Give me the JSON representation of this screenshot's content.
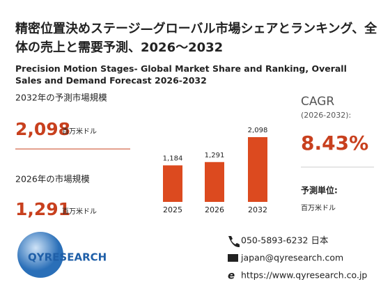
{
  "header": {
    "title": "精密位置決めステージ—グローバル市場シェアとランキング、全体の売上と需要予測、2026～2032",
    "subtitle": "Precision Motion Stages- Global Market Share and Ranking, Overall Sales and Demand Forecast 2026-2032"
  },
  "left": {
    "forecast_label": "2032年の予測市場規模",
    "forecast_value": "2,098",
    "forecast_unit": "百万米ドル",
    "current_label": "2026年の市場規模",
    "current_value": "1,291",
    "current_unit": "百万米ドル"
  },
  "chart_data": {
    "type": "bar",
    "categories": [
      "2025",
      "2026",
      "2032"
    ],
    "values": [
      1184,
      1291,
      2098
    ],
    "value_labels": [
      "1,184",
      "1,291",
      "2,098"
    ],
    "color": "#dc4a1f"
  },
  "right": {
    "cagr_label": "CAGR",
    "cagr_period": "(2026-2032):",
    "cagr_value": "8.43%",
    "unit_label": "予測単位:",
    "unit_value": "百万米ドル"
  },
  "footer": {
    "logo": "QYRESEARCH",
    "phone": "050-5893-6232 日本",
    "email": "japan@qyresearch.com",
    "web": "https://www.qyresearch.co.jp"
  }
}
